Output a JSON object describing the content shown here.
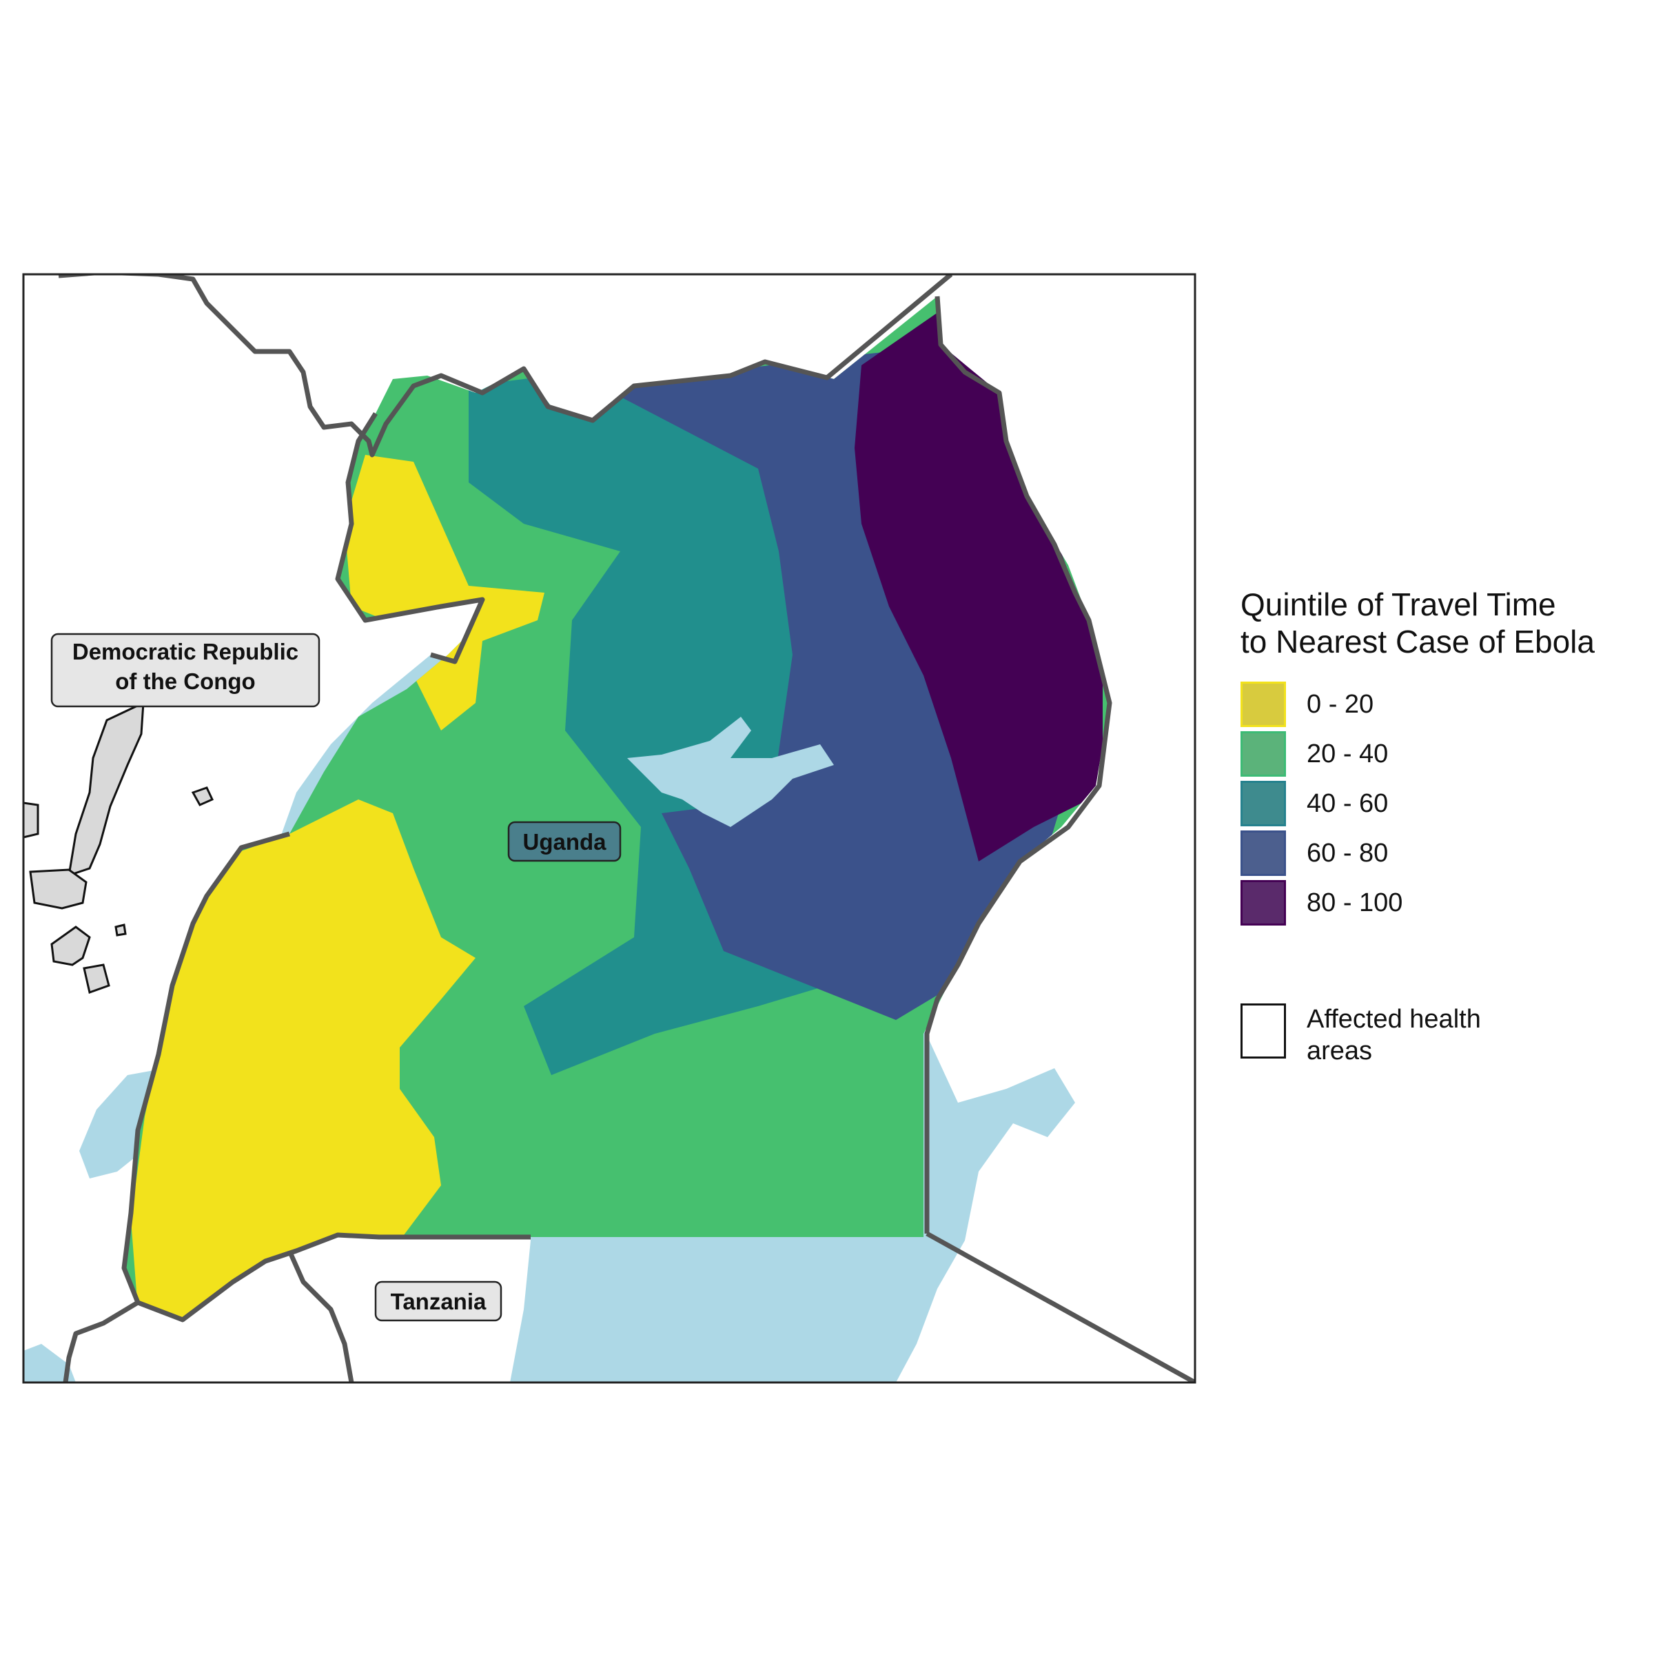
{
  "labels": {
    "drc": [
      "Democratic Republic",
      "of the Congo"
    ],
    "uganda": "Uganda",
    "tanzania": "Tanzania"
  },
  "legend": {
    "title_line1": "Quintile of Travel Time",
    "title_line2": "to Nearest Case of Ebola",
    "items": [
      {
        "label": "0 - 20",
        "color": "#d8cb3e",
        "border": "#f2e21c"
      },
      {
        "label": "20 - 40",
        "color": "#5bb37a",
        "border": "#3cbb75"
      },
      {
        "label": "40 - 60",
        "color": "#3e8b8e",
        "border": "#26828e"
      },
      {
        "label": "60 - 80",
        "color": "#4c5f8e",
        "border": "#3b528b"
      },
      {
        "label": "80 - 100",
        "color": "#5a2a6b",
        "border": "#440154"
      }
    ],
    "affected_label": "Affected health areas"
  },
  "colors": {
    "q1": "#f2e21c",
    "q2": "#46c06f",
    "q3": "#218f8d",
    "q4": "#3b528b",
    "q5": "#440154",
    "water": "#add8e6",
    "border": "#555555",
    "drc_area": "#d9d9d9"
  }
}
